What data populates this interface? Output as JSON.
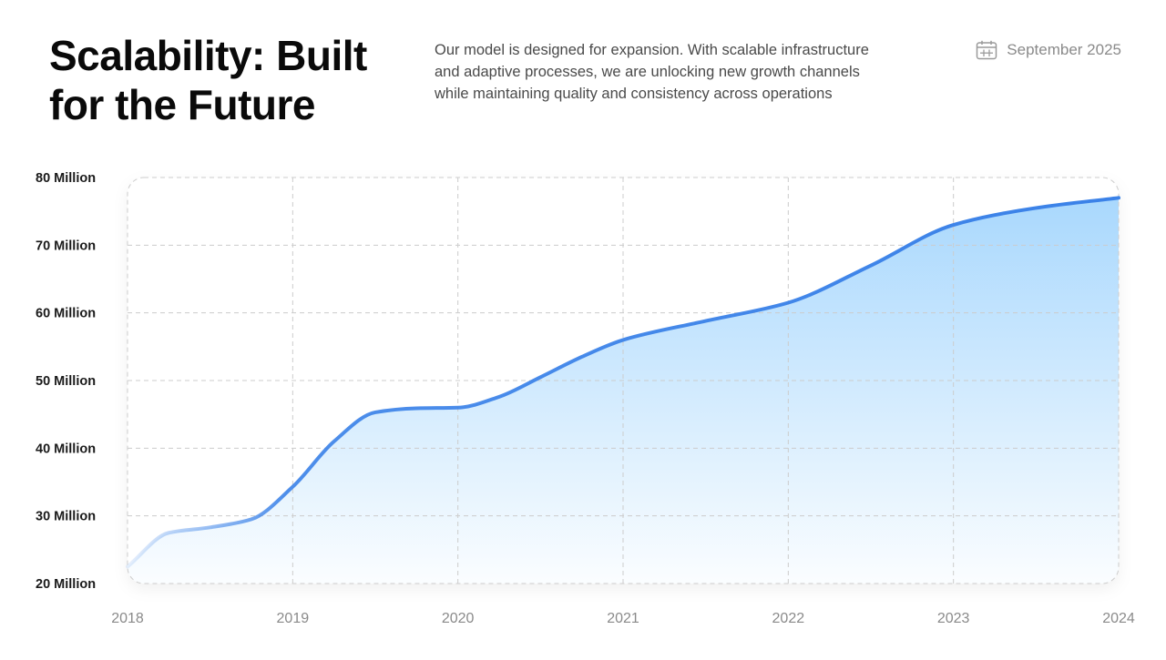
{
  "header": {
    "title_lines": [
      "Scalability: Built",
      "for the Future"
    ],
    "description": "Our model is designed for expansion. With scalable infrastructure and adaptive processes, we are unlocking new growth channels while maintaining quality and consistency across operations",
    "date": "September 2025",
    "date_icon": "calendar-icon"
  },
  "colors": {
    "line": "#3b82e8",
    "area_top": "#a9d8fd",
    "grid": "#cccccc"
  },
  "chart_data": {
    "type": "area",
    "x": [
      2018,
      2018.25,
      2018.5,
      2018.75,
      2019,
      2019.25,
      2019.5,
      2019.75,
      2020,
      2020.25,
      2020.5,
      2020.75,
      2021,
      2021.5,
      2022,
      2022.5,
      2023,
      2023.5,
      2024
    ],
    "series": [
      {
        "values": [
          22.5,
          27.5,
          28.3,
          29.5,
          34.3,
          41.0,
          45.3,
          45.9,
          46.0,
          47.6,
          50.5,
          53.5,
          56.0,
          58.8,
          61.5,
          67.0,
          73.0,
          75.5,
          77.0
        ]
      }
    ],
    "y_tick_labels": [
      "80 Million",
      "70 Million",
      "60 Million",
      "50 Million",
      "40 Million",
      "30 Million",
      "20 Million"
    ],
    "x_tick_labels": [
      "2018",
      "2019",
      "2020",
      "2021",
      "2022",
      "2023",
      "2024"
    ],
    "xlim": [
      2018,
      2024
    ],
    "ylim": [
      20,
      80
    ],
    "y_unit": "Million",
    "grid": true,
    "grid_style": "dashed",
    "xlabel": "",
    "ylabel": "",
    "title": ""
  }
}
